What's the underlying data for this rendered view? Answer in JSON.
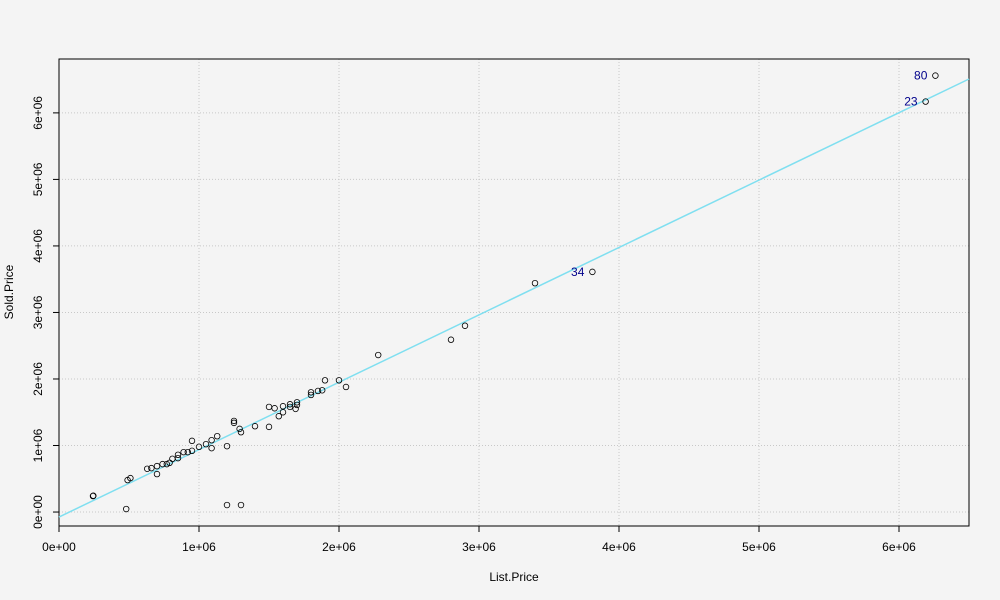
{
  "chart_data": {
    "type": "scatter",
    "x_label": "List.Price",
    "y_label": "Sold.Price",
    "x": [
      243000,
      245000,
      480000,
      490000,
      510000,
      630000,
      660000,
      700000,
      700000,
      740000,
      770000,
      790000,
      810000,
      850000,
      850000,
      890000,
      920000,
      950000,
      950000,
      1000000,
      1050000,
      1090000,
      1090000,
      1130000,
      1200000,
      1200000,
      1250000,
      1250000,
      1290000,
      1300000,
      1300000,
      1400000,
      1500000,
      1500000,
      1540000,
      1570000,
      1600000,
      1600000,
      1650000,
      1650000,
      1690000,
      1700000,
      1700000,
      1800000,
      1800000,
      1850000,
      1880000,
      1900000,
      2000000,
      2050000,
      2280000,
      2800000,
      2900000,
      3400000,
      3810000,
      6190000,
      6260000
    ],
    "values": [
      240000,
      245000,
      45000,
      480000,
      510000,
      650000,
      660000,
      570000,
      690000,
      720000,
      720000,
      740000,
      800000,
      810000,
      860000,
      900000,
      900000,
      920000,
      1070000,
      980000,
      1020000,
      960000,
      1080000,
      1140000,
      990000,
      105000,
      1370000,
      1340000,
      1250000,
      1200000,
      105000,
      1290000,
      1280000,
      1580000,
      1560000,
      1440000,
      1500000,
      1590000,
      1620000,
      1580000,
      1550000,
      1650000,
      1610000,
      1760000,
      1800000,
      1820000,
      1830000,
      1980000,
      1980000,
      1880000,
      2360000,
      2590000,
      2800000,
      3440000,
      3610000,
      6170000,
      6560000
    ],
    "point_labels": [
      null,
      null,
      null,
      null,
      null,
      null,
      null,
      null,
      null,
      null,
      null,
      null,
      null,
      null,
      null,
      null,
      null,
      null,
      null,
      null,
      null,
      null,
      null,
      null,
      null,
      null,
      null,
      null,
      null,
      null,
      null,
      null,
      null,
      null,
      null,
      null,
      null,
      null,
      null,
      null,
      null,
      null,
      null,
      null,
      null,
      null,
      null,
      null,
      null,
      null,
      null,
      null,
      null,
      null,
      "34",
      "23",
      "80"
    ],
    "point_color": "#000000",
    "label_color": "#00008b",
    "fit": {
      "intercept": -75000,
      "slope": 1.013,
      "color": "#7fdff0"
    },
    "xlim": [
      0,
      6500000
    ],
    "ylim": [
      -210000,
      6810000
    ],
    "xticks": [
      {
        "value": 0,
        "label": "0e+00"
      },
      {
        "value": 1000000,
        "label": "1e+06"
      },
      {
        "value": 2000000,
        "label": "2e+06"
      },
      {
        "value": 3000000,
        "label": "3e+06"
      },
      {
        "value": 4000000,
        "label": "4e+06"
      },
      {
        "value": 5000000,
        "label": "5e+06"
      },
      {
        "value": 6000000,
        "label": "6e+06"
      }
    ],
    "yticks": [
      {
        "value": 0,
        "label": "0e+00"
      },
      {
        "value": 1000000,
        "label": "1e+06"
      },
      {
        "value": 2000000,
        "label": "2e+06"
      },
      {
        "value": 3000000,
        "label": "3e+06"
      },
      {
        "value": 4000000,
        "label": "4e+06"
      },
      {
        "value": 5000000,
        "label": "5e+06"
      },
      {
        "value": 6000000,
        "label": "6e+06"
      }
    ],
    "grid": true
  }
}
